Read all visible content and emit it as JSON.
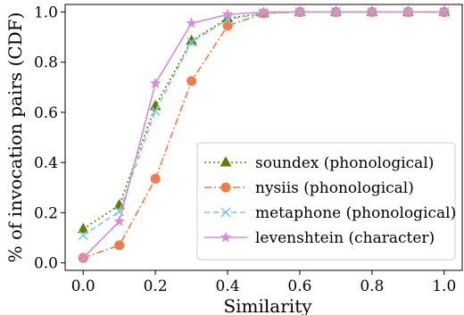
{
  "chart_data": {
    "type": "line",
    "xlabel": "Similarity",
    "ylabel": "% of invocation pairs (CDF)",
    "xlim": [
      -0.05,
      1.05
    ],
    "ylim": [
      -0.03,
      1.03
    ],
    "xticks": [
      "0.0",
      "0.2",
      "0.4",
      "0.6",
      "0.8",
      "1.0"
    ],
    "yticks": [
      "0.0",
      "0.2",
      "0.4",
      "0.6",
      "0.8",
      "1.0"
    ],
    "grid": false,
    "legend_position": "lower-right",
    "x": [
      0.0,
      0.1,
      0.2,
      0.3,
      0.4,
      0.5,
      0.6,
      0.7,
      0.8,
      0.9,
      1.0
    ],
    "series": [
      {
        "name": "soundex (phonological)",
        "color": "#6b7a00",
        "dash": "dotted",
        "marker": "triangle",
        "values": [
          0.135,
          0.23,
          0.625,
          0.885,
          0.975,
          0.995,
          1.0,
          1.0,
          1.0,
          1.0,
          1.0
        ]
      },
      {
        "name": "nysiis (phonological)",
        "color": "#f4794b",
        "dash": "dashdot",
        "marker": "circle",
        "values": [
          0.02,
          0.07,
          0.335,
          0.725,
          0.945,
          0.995,
          1.0,
          1.0,
          1.0,
          1.0,
          1.0
        ]
      },
      {
        "name": "metaphone (phonological)",
        "color": "#7ec8e3",
        "dash": "dashed",
        "marker": "x",
        "values": [
          0.11,
          0.205,
          0.605,
          0.88,
          0.97,
          0.995,
          1.0,
          1.0,
          1.0,
          1.0,
          1.0
        ]
      },
      {
        "name": "levenshtein (character)",
        "color": "#d28fd6",
        "dash": "solid",
        "marker": "star",
        "values": [
          0.02,
          0.165,
          0.715,
          0.955,
          0.99,
          1.0,
          1.0,
          1.0,
          1.0,
          1.0,
          1.0
        ]
      }
    ]
  }
}
